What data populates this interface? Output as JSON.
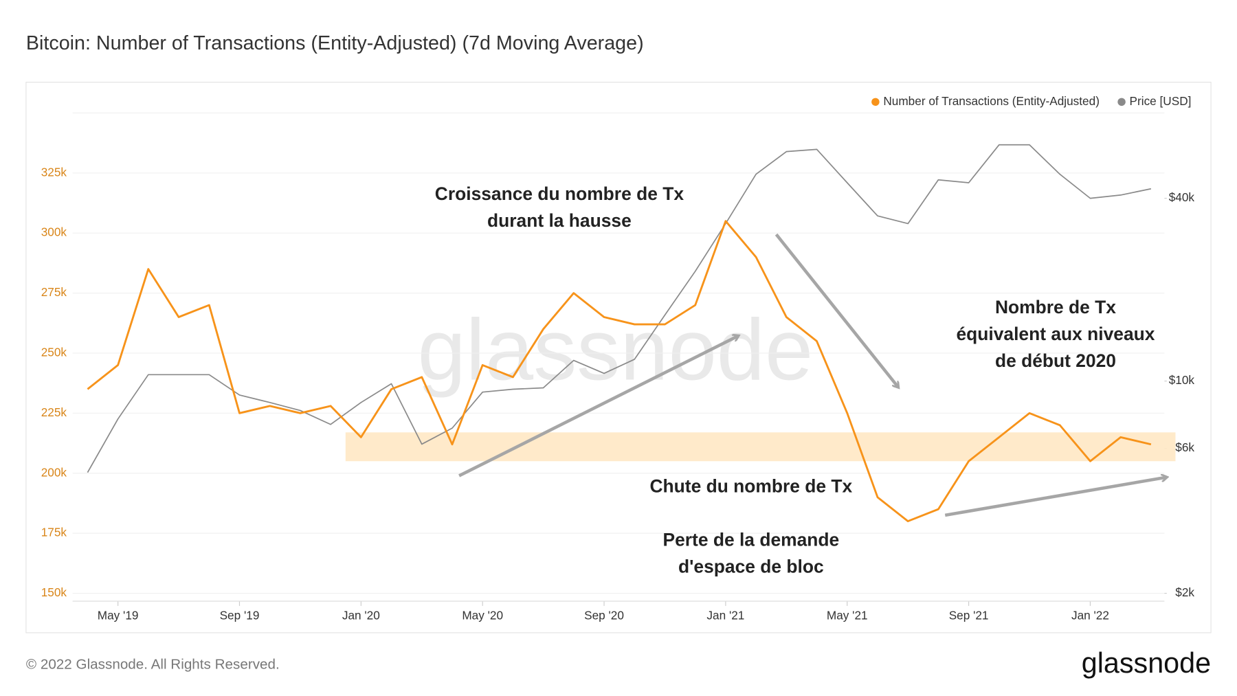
{
  "chart_data": {
    "type": "line",
    "title": "Bitcoin: Number of Transactions (Entity-Adjusted) (7d Moving Average)",
    "x": [
      "2019-04",
      "2019-05",
      "2019-06",
      "2019-07",
      "2019-08",
      "2019-09",
      "2019-10",
      "2019-11",
      "2019-12",
      "2020-01",
      "2020-02",
      "2020-03",
      "2020-04",
      "2020-05",
      "2020-06",
      "2020-07",
      "2020-08",
      "2020-09",
      "2020-10",
      "2020-11",
      "2020-12",
      "2021-01",
      "2021-02",
      "2021-03",
      "2021-04",
      "2021-05",
      "2021-06",
      "2021-07",
      "2021-08",
      "2021-09",
      "2021-10",
      "2021-11",
      "2021-12",
      "2022-01",
      "2022-02",
      "2022-03"
    ],
    "series": [
      {
        "name": "Number of Transactions (Entity-Adjusted)",
        "color": "#f7931a",
        "axis": "y",
        "values": [
          235000,
          245000,
          285000,
          265000,
          270000,
          225000,
          228000,
          225000,
          228000,
          215000,
          235000,
          240000,
          212000,
          245000,
          240000,
          260000,
          275000,
          265000,
          262000,
          262000,
          270000,
          305000,
          290000,
          265000,
          255000,
          225000,
          190000,
          180000,
          185000,
          205000,
          215000,
          225000,
          220000,
          205000,
          215000,
          212000
        ]
      },
      {
        "name": "Price [USD]",
        "color": "#8a8a8a",
        "axis": "y2",
        "values": [
          5000,
          7500,
          10500,
          10500,
          10500,
          9000,
          8500,
          8000,
          7200,
          8500,
          9800,
          6200,
          7000,
          9200,
          9400,
          9500,
          11700,
          10600,
          11800,
          16500,
          23000,
          33000,
          48000,
          57000,
          58000,
          45000,
          35000,
          33000,
          46000,
          45000,
          60000,
          60000,
          48000,
          40000,
          41000,
          43000
        ]
      }
    ],
    "xlim": [
      "2019-04",
      "2022-03"
    ],
    "xticks": [
      {
        "value": "2019-05",
        "label": "May '19"
      },
      {
        "value": "2019-09",
        "label": "Sep '19"
      },
      {
        "value": "2020-01",
        "label": "Jan '20"
      },
      {
        "value": "2020-05",
        "label": "May '20"
      },
      {
        "value": "2020-09",
        "label": "Sep '20"
      },
      {
        "value": "2021-01",
        "label": "Jan '21"
      },
      {
        "value": "2021-05",
        "label": "May '21"
      },
      {
        "value": "2021-09",
        "label": "Sep '21"
      },
      {
        "value": "2022-01",
        "label": "Jan '22"
      }
    ],
    "ylim": [
      150000,
      350000
    ],
    "yticks": [
      {
        "value": 150000,
        "label": "150k"
      },
      {
        "value": 175000,
        "label": "175k"
      },
      {
        "value": 200000,
        "label": "200k"
      },
      {
        "value": 225000,
        "label": "225k"
      },
      {
        "value": 250000,
        "label": "250k"
      },
      {
        "value": 275000,
        "label": "275k"
      },
      {
        "value": 300000,
        "label": "300k"
      },
      {
        "value": 325000,
        "label": "325k"
      }
    ],
    "y2lim": [
      2000,
      76400
    ],
    "y2scale": "log",
    "y2ticks": [
      {
        "value": 2000,
        "label": "$2k"
      },
      {
        "value": 6000,
        "label": "$6k"
      },
      {
        "value": 10000,
        "label": "$10k"
      },
      {
        "value": 40000,
        "label": "$40k"
      }
    ],
    "grid": true,
    "legend": "top-right",
    "highlight_band": [
      205000,
      217000
    ],
    "annotations": [
      {
        "lines": [
          "Croissance du nombre de Tx",
          "durant la hausse"
        ]
      },
      {
        "lines": [
          "Nombre de Tx",
          "équivalent aux niveaux",
          "de début 2020"
        ]
      },
      {
        "lines": [
          "Chute du nombre de Tx"
        ]
      },
      {
        "lines": [
          "Perte de la demande",
          "d'espace de bloc"
        ]
      }
    ],
    "watermark": "glassnode",
    "footer": "© 2022 Glassnode. All Rights Reserved.",
    "logo": "glassnode"
  }
}
